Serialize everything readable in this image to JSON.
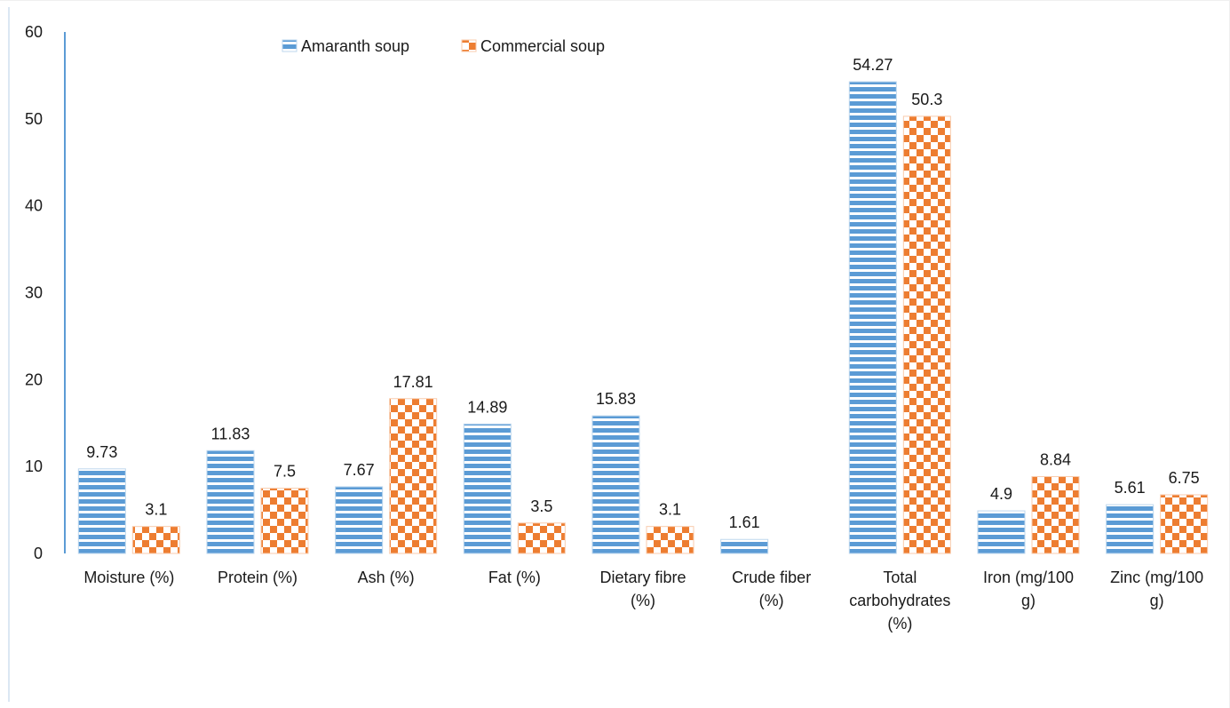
{
  "chart_data": {
    "type": "bar",
    "categories": [
      "Moisture (%)",
      "Protein (%)",
      "Ash (%)",
      "Fat (%)",
      "Dietary fibre (%)",
      "Crude fiber (%)",
      "Total carbohydrates (%)",
      "Iron (mg/100 g)",
      "Zinc (mg/100 g)"
    ],
    "category_lines": [
      [
        "Moisture (%)"
      ],
      [
        "Protein (%)"
      ],
      [
        "Ash (%)"
      ],
      [
        "Fat (%)"
      ],
      [
        "Dietary fibre",
        "(%)"
      ],
      [
        "Crude fiber",
        "(%)"
      ],
      [
        "Total",
        "carbohydrates",
        "(%)"
      ],
      [
        "Iron (mg/100",
        "g)"
      ],
      [
        "Zinc (mg/100",
        "g)"
      ]
    ],
    "series": [
      {
        "name": "Amaranth soup",
        "values": [
          9.73,
          11.83,
          7.67,
          14.89,
          15.83,
          1.61,
          54.27,
          4.9,
          5.61
        ],
        "labels": [
          "9.73",
          "11.83",
          "7.67",
          "14.89",
          "15.83",
          "1.61",
          "54.27",
          "4.9",
          "5.61"
        ],
        "color": "#5b9bd5",
        "pattern": "horizontal-stripes"
      },
      {
        "name": "Commercial soup",
        "values": [
          3.1,
          7.5,
          17.81,
          3.5,
          3.1,
          null,
          50.3,
          8.84,
          6.75
        ],
        "labels": [
          "3.1",
          "7.5",
          "17.81",
          "3.5",
          "3.1",
          "",
          "50.3",
          "8.84",
          "6.75"
        ],
        "color": "#ed7d31",
        "pattern": "checkerboard"
      }
    ],
    "title": "",
    "xlabel": "",
    "ylabel": "",
    "ylim": [
      0,
      60
    ],
    "yticks": [
      0,
      10,
      20,
      30,
      40,
      50,
      60
    ],
    "grid": false,
    "legend_position": "top-left"
  }
}
